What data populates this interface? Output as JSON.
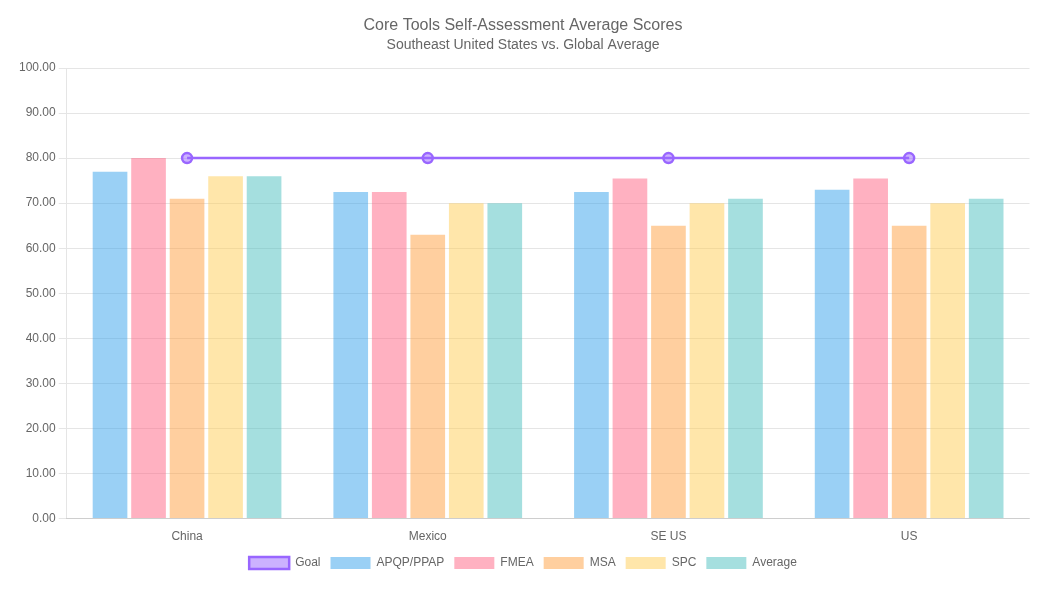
{
  "chart_data": {
    "type": "bar",
    "title": "Core Tools Self-Assessment Average Scores",
    "subtitle": "Southeast United States vs. Global Average",
    "categories": [
      "China",
      "Mexico",
      "SE US",
      "US"
    ],
    "series": [
      {
        "name": "APQP/PPAP",
        "values": [
          77.0,
          72.5,
          72.5,
          73.0
        ]
      },
      {
        "name": "FMEA",
        "values": [
          80.0,
          72.5,
          75.5,
          75.5
        ]
      },
      {
        "name": "MSA",
        "values": [
          71.0,
          63.0,
          65.0,
          65.0
        ]
      },
      {
        "name": "SPC",
        "values": [
          76.0,
          70.0,
          70.0,
          70.0
        ]
      },
      {
        "name": "Average",
        "values": [
          76.0,
          70.0,
          71.0,
          71.0
        ]
      },
      {
        "name": "Goal",
        "type": "line",
        "marker": "circle",
        "values": [
          80.0,
          80.0,
          80.0,
          80.0
        ]
      }
    ],
    "ylim": [
      0,
      100
    ],
    "yticks": [
      {
        "value": 0,
        "label": "0.00"
      },
      {
        "value": 10,
        "label": "10.00"
      },
      {
        "value": 20,
        "label": "20.00"
      },
      {
        "value": 30,
        "label": "30.00"
      },
      {
        "value": 40,
        "label": "40.00"
      },
      {
        "value": 50,
        "label": "50.00"
      },
      {
        "value": 60,
        "label": "60.00"
      },
      {
        "value": 70,
        "label": "70.00"
      },
      {
        "value": 80,
        "label": "80.00"
      },
      {
        "value": 90,
        "label": "90.00"
      },
      {
        "value": 100,
        "label": "100.00"
      }
    ],
    "grid": true,
    "legend": "bottom"
  }
}
